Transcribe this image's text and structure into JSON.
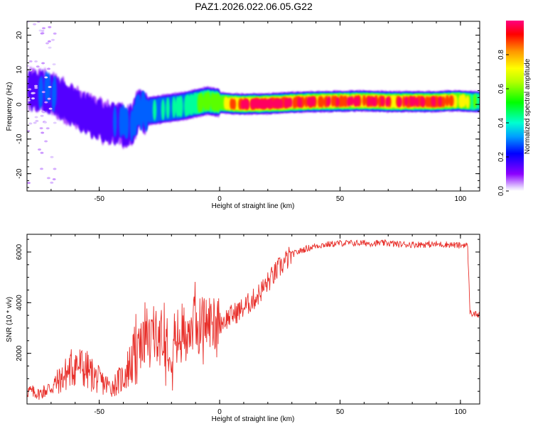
{
  "title": "PAZ1.2026.022.06.05.G22",
  "chart_data": [
    {
      "type": "heatmap",
      "title": "PAZ1.2026.022.06.05.G22",
      "xlabel": "Height of straight line (km)",
      "ylabel": "Frequency (Hz)",
      "xlim": [
        -80,
        108
      ],
      "ylim": [
        -25,
        24
      ],
      "xticks": [
        -50,
        0,
        50,
        100
      ],
      "xtick_labels": [
        "-50",
        "0",
        "50",
        "100"
      ],
      "yticks": [
        -20,
        -10,
        0,
        10,
        20
      ],
      "ytick_labels": [
        "-20",
        "-10",
        "0",
        "10",
        "20"
      ],
      "colorbar": {
        "label": "Normalized spectral amplitude",
        "range": [
          0,
          1
        ],
        "ticks": [
          0,
          0.2,
          0.4,
          0.6,
          0.8
        ],
        "tick_labels": [
          "0.0",
          "0.2",
          "0.4",
          "0.6",
          "0.8"
        ]
      },
      "ridge": {
        "heights": [
          -78,
          -72,
          -68,
          -64,
          -60,
          -56,
          -52,
          -48,
          -44,
          -40,
          -36,
          -34,
          -30,
          -25,
          -20,
          -15,
          -10,
          -5,
          0,
          5,
          10,
          20,
          30,
          40,
          50,
          60,
          70,
          80,
          90,
          95,
          100,
          105,
          108
        ],
        "frequencies": [
          4,
          4,
          2.5,
          1,
          -1,
          -2.5,
          -4,
          -5,
          -5.5,
          -6,
          -6,
          -2,
          -2,
          -1.5,
          -1,
          -0.5,
          0.3,
          1,
          0.5,
          0.2,
          0.1,
          0.2,
          0.6,
          0.8,
          0.9,
          1,
          0.8,
          0.8,
          0.8,
          1,
          1,
          0.8,
          0.8
        ],
        "amplitudes": [
          0.15,
          0.3,
          0.2,
          0.15,
          0.15,
          0.15,
          0.15,
          0.2,
          0.2,
          0.25,
          0.25,
          0.3,
          0.3,
          0.35,
          0.35,
          0.4,
          0.5,
          0.55,
          0.6,
          0.7,
          0.95,
          0.95,
          0.8,
          0.85,
          0.85,
          0.85,
          0.85,
          0.85,
          0.9,
          0.8,
          0.7,
          0.5,
          0.4
        ]
      }
    },
    {
      "type": "line",
      "xlabel": "Height of straight line (km)",
      "ylabel": "SNR (10 * v/v)",
      "xlim": [
        -80,
        108
      ],
      "ylim": [
        0,
        6700
      ],
      "xticks": [
        -50,
        0,
        50,
        100
      ],
      "xtick_labels": [
        "-50",
        "0",
        "50",
        "100"
      ],
      "yticks": [
        2000,
        4000,
        6000
      ],
      "ytick_labels": [
        "2000",
        "4000",
        "6000"
      ],
      "color": "#e8302b",
      "series": [
        {
          "name": "SNR",
          "x": [
            -80,
            -75,
            -70,
            -65,
            -60,
            -55,
            -50,
            -45,
            -40,
            -35,
            -30,
            -25,
            -20,
            -15,
            -10,
            -5,
            0,
            5,
            10,
            15,
            20,
            25,
            30,
            35,
            40,
            45,
            50,
            55,
            60,
            65,
            70,
            75,
            80,
            85,
            90,
            95,
            100,
            102,
            103,
            104,
            106,
            108
          ],
          "y": [
            400,
            300,
            500,
            800,
            1200,
            1000,
            700,
            500,
            800,
            1500,
            2500,
            2600,
            2200,
            2800,
            3000,
            3100,
            3200,
            3500,
            3800,
            4200,
            4800,
            5400,
            5900,
            6100,
            6250,
            6300,
            6350,
            6350,
            6350,
            6350,
            6350,
            6300,
            6300,
            6300,
            6300,
            6300,
            6250,
            6300,
            6200,
            3600,
            3550,
            3500
          ]
        }
      ]
    }
  ]
}
